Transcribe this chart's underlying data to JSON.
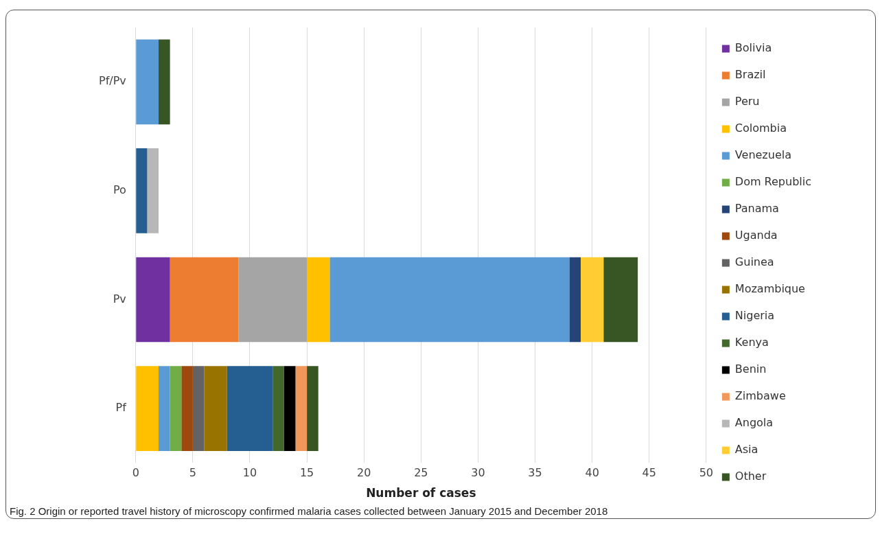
{
  "chart_data": {
    "type": "bar",
    "orientation": "horizontal",
    "stacked": true,
    "xlabel": "Number of cases",
    "categories": [
      "Pf/Pv",
      "Po",
      "Pv",
      "Pf"
    ],
    "xlim": [
      0,
      50
    ],
    "xticks": [
      0,
      5,
      10,
      15,
      20,
      25,
      30,
      35,
      40,
      45,
      50
    ],
    "grid": "x",
    "legend": "right",
    "series": [
      {
        "name": "Bolivia",
        "color": "#7030a0",
        "values": [
          null,
          null,
          3,
          null
        ]
      },
      {
        "name": "Brazil",
        "color": "#ed7d31",
        "values": [
          null,
          null,
          6,
          null
        ]
      },
      {
        "name": "Peru",
        "color": "#a5a5a5",
        "values": [
          null,
          null,
          6,
          null
        ]
      },
      {
        "name": "Colombia",
        "color": "#ffc000",
        "values": [
          null,
          null,
          2,
          2
        ]
      },
      {
        "name": "Venezuela",
        "color": "#5b9bd5",
        "values": [
          2,
          null,
          21,
          1
        ]
      },
      {
        "name": "Dom Republic",
        "color": "#70ad47",
        "values": [
          null,
          null,
          null,
          1
        ]
      },
      {
        "name": "Panama",
        "color": "#264478",
        "values": [
          null,
          null,
          1,
          null
        ]
      },
      {
        "name": "Uganda",
        "color": "#9e480e",
        "values": [
          null,
          null,
          null,
          1
        ]
      },
      {
        "name": "Guinea",
        "color": "#636363",
        "values": [
          null,
          null,
          null,
          1
        ]
      },
      {
        "name": "Mozambique",
        "color": "#997300",
        "values": [
          null,
          null,
          null,
          2
        ]
      },
      {
        "name": "Nigeria",
        "color": "#255e91",
        "values": [
          null,
          1,
          null,
          4
        ]
      },
      {
        "name": "Kenya",
        "color": "#43682b",
        "values": [
          null,
          null,
          null,
          1
        ]
      },
      {
        "name": "Benin",
        "color": "#000000",
        "values": [
          null,
          null,
          null,
          1
        ]
      },
      {
        "name": "Zimbawe",
        "color": "#f1975a",
        "values": [
          null,
          null,
          null,
          1
        ]
      },
      {
        "name": "Angola",
        "color": "#b7b7b7",
        "values": [
          null,
          1,
          null,
          null
        ]
      },
      {
        "name": "Asia",
        "color": "#ffcd33",
        "values": [
          null,
          null,
          2,
          null
        ]
      },
      {
        "name": "Other",
        "color": "#375623",
        "values": [
          1,
          null,
          3,
          1
        ]
      }
    ],
    "annotations": [
      "Fig. 2  Origin or reported travel history of microscopy confirmed malaria cases collected between January 2015 and December 2018"
    ]
  }
}
